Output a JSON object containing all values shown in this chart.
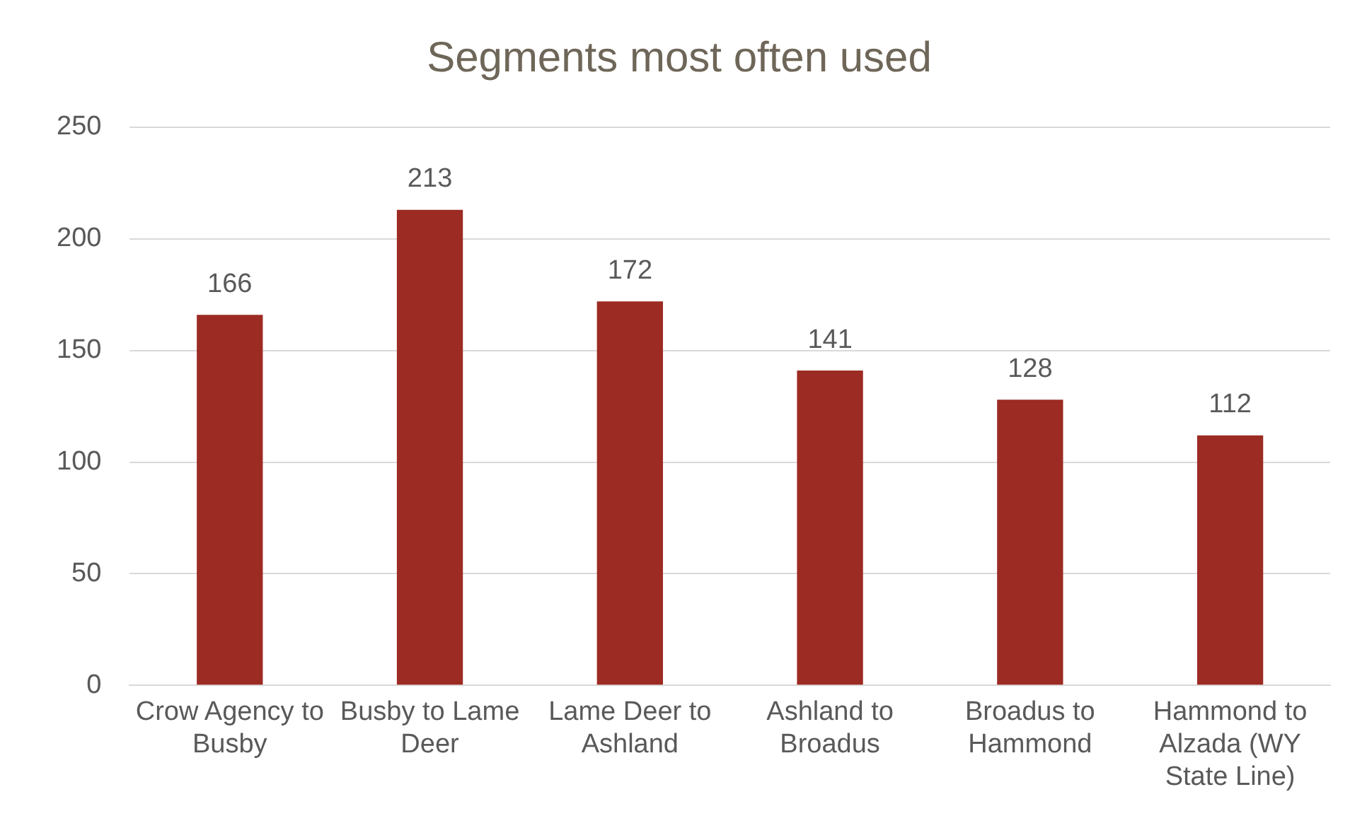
{
  "chart_data": {
    "type": "bar",
    "title": "Segments most often used",
    "categories": [
      "Crow Agency to Busby",
      "Busby to Lame Deer",
      "Lame Deer to Ashland",
      "Ashland to Broadus",
      "Broadus to Hammond",
      "Hammond to Alzada (WY State Line)"
    ],
    "values": [
      166,
      213,
      172,
      141,
      128,
      112
    ],
    "color": "#9c2b23",
    "ylim": [
      0,
      250
    ],
    "yticks": [
      0,
      50,
      100,
      150,
      200,
      250
    ],
    "grid": "y",
    "data_labels": true,
    "legend": false
  }
}
